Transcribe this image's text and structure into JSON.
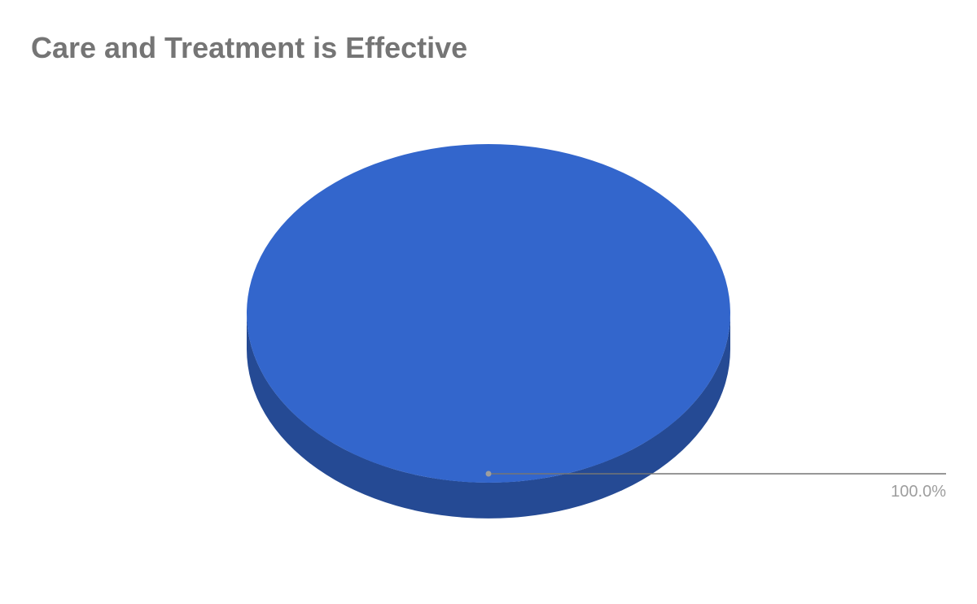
{
  "chart_data": {
    "type": "pie",
    "title": "Care and Treatment is Effective",
    "style": "3d",
    "slices": [
      {
        "value": 100.0,
        "label": "100.0%",
        "color": "#3366cc",
        "side_color": "#254a94"
      }
    ],
    "colors": {
      "title": "#757575",
      "data_label": "#9e9e9e",
      "leader_line": "#757575",
      "leader_dot": "#9e9e9e"
    }
  }
}
